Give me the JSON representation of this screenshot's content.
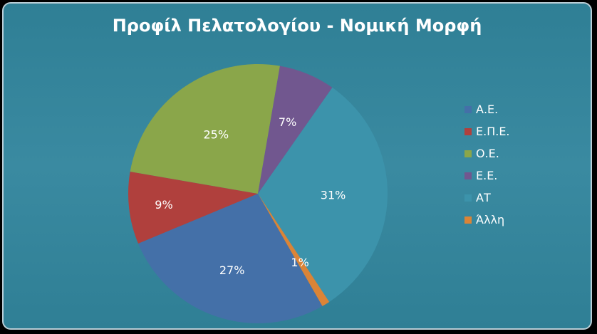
{
  "chart_data": {
    "type": "pie",
    "title": "Προφίλ Πελατολογίου - Νομική Μορφή",
    "categories": [
      "Α.Ε.",
      "Ε.Π.Ε.",
      "Ο.Ε.",
      "Ε.Ε.",
      "ΑΤ",
      "Άλλη"
    ],
    "values": [
      27,
      9,
      25,
      7,
      31,
      1
    ],
    "data_labels": [
      "27%",
      "9%",
      "25%",
      "7%",
      "31%",
      "1%"
    ],
    "colors": [
      "#4470a8",
      "#b0403d",
      "#8aa64a",
      "#71578f",
      "#3c93ab",
      "#db8437"
    ],
    "legend_position": "right"
  }
}
